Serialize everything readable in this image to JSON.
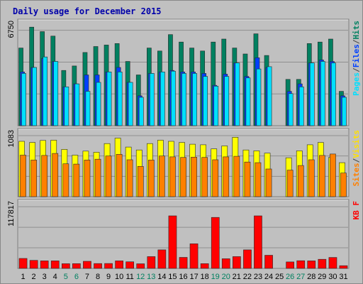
{
  "chart_data": {
    "type": "bar",
    "title": "Daily usage for December 2015",
    "days": [
      "1",
      "2",
      "3",
      "4",
      "5",
      "6",
      "7",
      "8",
      "9",
      "10",
      "11",
      "12",
      "13",
      "14",
      "15",
      "16",
      "17",
      "18",
      "19",
      "20",
      "21",
      "22",
      "23",
      "24",
      "25",
      "26",
      "27",
      "28",
      "29",
      "30",
      "31"
    ],
    "weekend_days": [
      "5",
      "6",
      "12",
      "13",
      "19",
      "20",
      "26",
      "27"
    ],
    "panels": [
      {
        "id": "hits-files-pages",
        "ymax_label": "6750",
        "ymax": 6750,
        "legend": [
          "Pages",
          "/",
          "Files",
          "/",
          "Hits"
        ],
        "legend_colors": [
          "#00e0ff",
          "#444444",
          "#0040ff",
          "#444444",
          "#008060"
        ],
        "series": [
          {
            "name": "Hits",
            "color": "#008060",
            "values": [
              5200,
              6600,
              6300,
              6000,
              3700,
              4000,
              4900,
              5300,
              5400,
              5500,
              4300,
              3400,
              5200,
              5000,
              6100,
              5600,
              5200,
              5000,
              5600,
              5800,
              5200,
              4800,
              6150,
              4700,
              null,
              3100,
              3100,
              5500,
              5600,
              5800,
              2300
            ]
          },
          {
            "name": "Files",
            "color": "#0040ff",
            "values": [
              3600,
              3900,
              4500,
              4300,
              2600,
              2800,
              3400,
              3400,
              3600,
              3900,
              2900,
              2000,
              3500,
              3600,
              3700,
              3600,
              3600,
              3500,
              2700,
              3450,
              4200,
              3300,
              4550,
              3900,
              null,
              2300,
              2800,
              4200,
              4400,
              4300,
              2000
            ]
          },
          {
            "name": "Pages",
            "color": "#00e0ff",
            "values": [
              3500,
              3900,
              4600,
              4300,
              2600,
              2800,
              2300,
              2900,
              3600,
              3600,
              2900,
              1900,
              3500,
              3600,
              3650,
              3500,
              3500,
              3300,
              2650,
              3300,
              4200,
              3200,
              3800,
              3950,
              null,
              2150,
              2600,
              4200,
              4300,
              4200,
              1900
            ]
          }
        ]
      },
      {
        "id": "visits-sites",
        "ymax_label": "1083",
        "ymax": 1083,
        "legend": [
          "Sites",
          "/",
          "Visits"
        ],
        "legend_colors": [
          "#ff8000",
          "#444444",
          "#ffe000"
        ],
        "series": [
          {
            "name": "Visits",
            "color": "#ffff00",
            "values": [
              960,
              940,
              975,
              980,
              820,
              720,
              790,
              770,
              920,
              1015,
              860,
              810,
              920,
              980,
              960,
              940,
              910,
              900,
              830,
              880,
              1030,
              810,
              795,
              755,
              null,
              675,
              795,
              900,
              940,
              680,
              590
            ]
          },
          {
            "name": "Sites",
            "color": "#ff8000",
            "values": [
              720,
              635,
              715,
              750,
              570,
              565,
              635,
              650,
              705,
              735,
              640,
              525,
              635,
              705,
              690,
              680,
              685,
              680,
              640,
              690,
              700,
              600,
              590,
              480,
              null,
              460,
              540,
              640,
              715,
              740,
              410
            ]
          }
        ]
      },
      {
        "id": "kbf",
        "ymax_label": "117817",
        "ymax": 117817,
        "legend": [
          "KB F"
        ],
        "legend_colors": [
          "#ff0000"
        ],
        "series": [
          {
            "name": "KB F",
            "color": "#ff0000",
            "values": [
              18500,
              15000,
              14000,
              14000,
              8800,
              8900,
              13200,
              9000,
              9200,
              14000,
              12300,
              8600,
              22000,
              34500,
              98000,
              20500,
              46000,
              8900,
              95000,
              18000,
              22000,
              34500,
              98000,
              24500,
              null,
              12000,
              14300,
              14000,
              17000,
              20400,
              5000
            ]
          }
        ]
      }
    ]
  }
}
